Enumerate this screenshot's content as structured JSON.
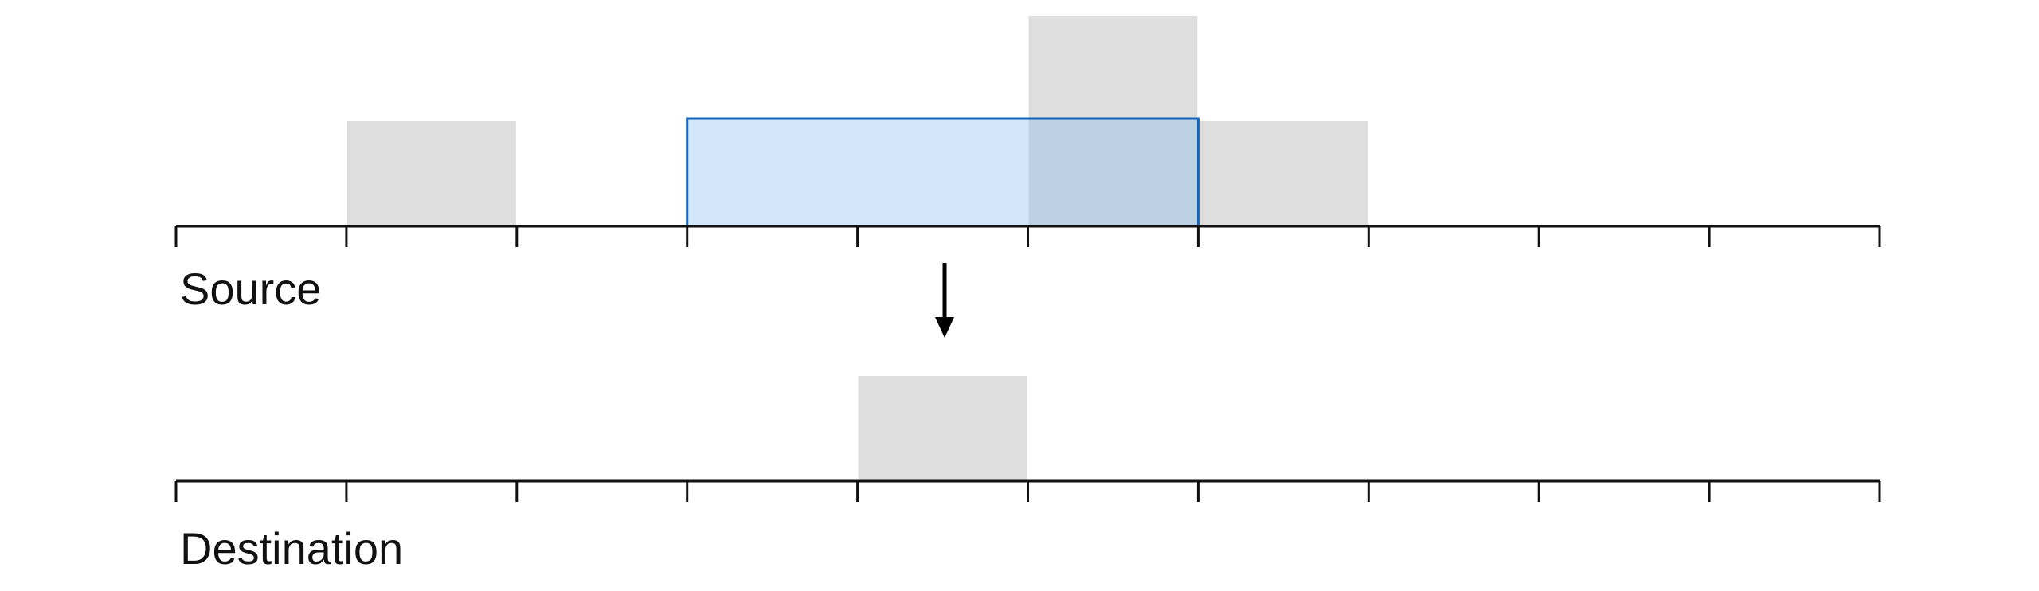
{
  "source": {
    "label": "Source",
    "tick_count": 11,
    "bars": [
      {
        "slot": 1,
        "height": 1
      },
      {
        "slot": 5,
        "height": 2
      },
      {
        "slot": 6,
        "height": 1
      }
    ],
    "selection": {
      "start": 3,
      "end": 6,
      "height": 1
    }
  },
  "destination": {
    "label": "Destination",
    "tick_count": 11,
    "bars": [
      {
        "slot": 4,
        "height": 1
      }
    ]
  },
  "colors": {
    "bar_fill": "#dedede",
    "selection_fill": "#7fbbf2",
    "selection_stroke": "#1565c0",
    "axis": "#111111",
    "arrow": "#000000"
  }
}
